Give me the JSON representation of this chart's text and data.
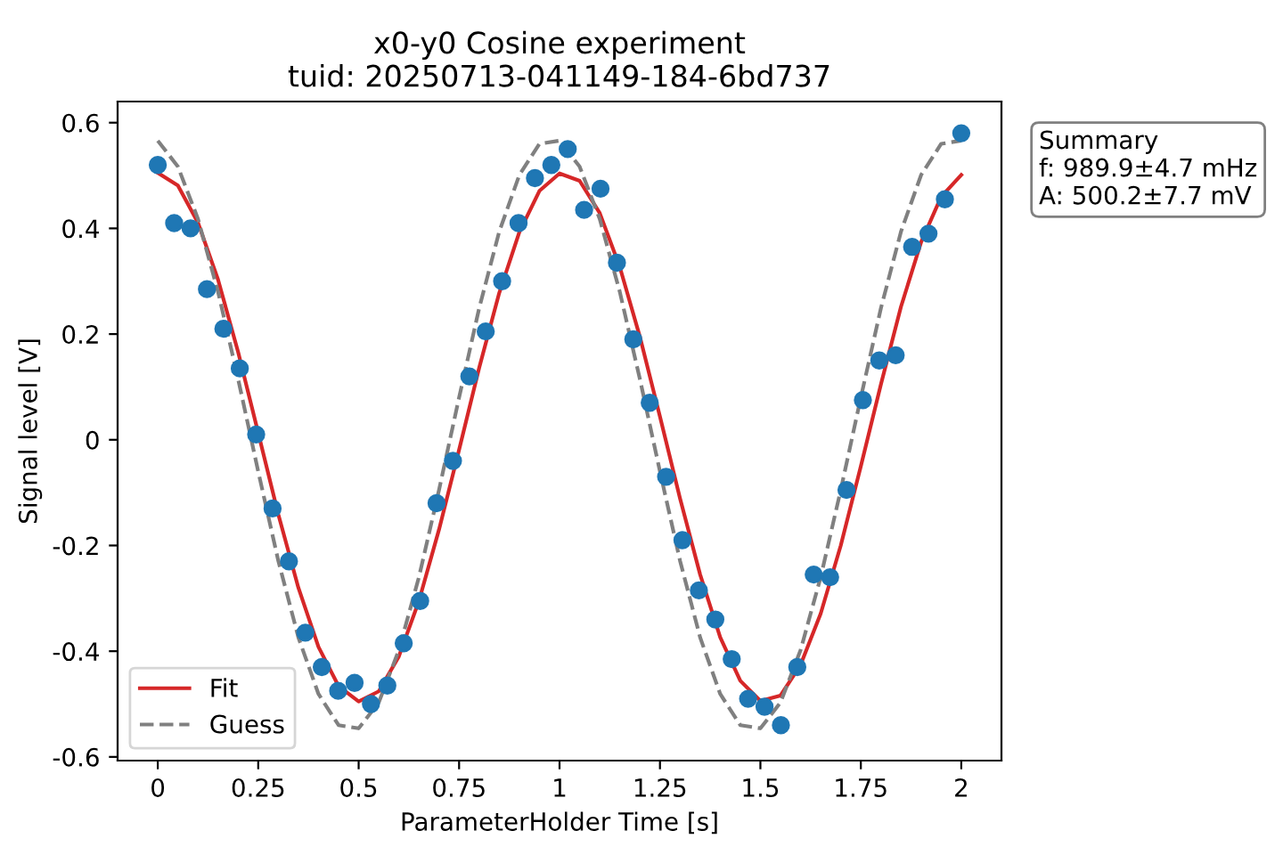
{
  "chart_data": {
    "type": "scatter",
    "title": "x0-y0 Cosine experiment",
    "subtitle": "tuid: 20250713-041149-184-6bd737",
    "xlabel": "ParameterHolder Time [s]",
    "ylabel": "Signal level [V]",
    "annotations": [
      "Summary\nf: 989.9±4.7 mHz\nA: 500.2±7.7 mV"
    ],
    "x": [
      0,
      0.0408,
      0.0816,
      0.1224,
      0.1633,
      0.2041,
      0.2449,
      0.2857,
      0.3265,
      0.3673,
      0.4082,
      0.449,
      0.4898,
      0.5306,
      0.5714,
      0.6122,
      0.6531,
      0.6939,
      0.7347,
      0.7755,
      0.8163,
      0.8571,
      0.898,
      0.9388,
      0.9796,
      1.0204,
      1.0612,
      1.102,
      1.1429,
      1.1837,
      1.2245,
      1.2653,
      1.3061,
      1.3469,
      1.3878,
      1.4286,
      1.4694,
      1.5102,
      1.551,
      1.5918,
      1.6327,
      1.6735,
      1.7143,
      1.7551,
      1.7959,
      1.8367,
      1.8776,
      1.9184,
      1.9592,
      2
    ],
    "series": [
      {
        "color": "#1f77b4",
        "marker": "circle",
        "values": [
          0.52,
          0.41,
          0.4,
          0.285,
          0.21,
          0.135,
          0.01,
          -0.13,
          -0.23,
          -0.365,
          -0.43,
          -0.475,
          -0.46,
          -0.5,
          -0.465,
          -0.385,
          -0.305,
          -0.12,
          -0.04,
          0.12,
          0.205,
          0.3,
          0.41,
          0.495,
          0.52,
          0.55,
          0.435,
          0.475,
          0.335,
          0.19,
          0.07,
          -0.07,
          -0.19,
          -0.285,
          -0.34,
          -0.415,
          -0.49,
          -0.505,
          -0.54,
          -0.43,
          -0.255,
          -0.26,
          -0.095,
          0.075,
          0.15,
          0.16,
          0.365,
          0.39,
          0.455,
          0.58
        ]
      },
      {
        "type": "line",
        "name": "Fit",
        "color": "#d62728",
        "line_style": "solid",
        "x": [
          0,
          0.05,
          0.1,
          0.15,
          0.2,
          0.25,
          0.3,
          0.35,
          0.4,
          0.45,
          0.5,
          0.55,
          0.6,
          0.65,
          0.7,
          0.75,
          0.8,
          0.85,
          0.9,
          0.95,
          1,
          1.05,
          1.1,
          1.15,
          1.2,
          1.25,
          1.3,
          1.35,
          1.4,
          1.45,
          1.5,
          1.55,
          1.6,
          1.65,
          1.7,
          1.75,
          1.8,
          1.85,
          1.9,
          1.95,
          2
        ],
        "values": [
          0.505,
          0.481,
          0.411,
          0.303,
          0.166,
          0.013,
          -0.141,
          -0.28,
          -0.392,
          -0.466,
          -0.495,
          -0.476,
          -0.41,
          -0.305,
          -0.17,
          -0.019,
          0.136,
          0.278,
          0.393,
          0.471,
          0.504,
          0.49,
          0.429,
          0.327,
          0.195,
          0.044,
          -0.111,
          -0.255,
          -0.374,
          -0.456,
          -0.494,
          -0.484,
          -0.426,
          -0.329,
          -0.2,
          -0.05,
          0.105,
          0.252,
          0.374,
          0.46,
          0.501
        ]
      },
      {
        "type": "line",
        "name": "Guess",
        "color": "#808080",
        "line_style": "dashed",
        "x": [
          0,
          0.05,
          0.1,
          0.15,
          0.2,
          0.25,
          0.3,
          0.35,
          0.4,
          0.45,
          0.5,
          0.55,
          0.6,
          0.65,
          0.7,
          0.75,
          0.8,
          0.85,
          0.9,
          0.95,
          1,
          1.05,
          1.1,
          1.15,
          1.2,
          1.25,
          1.3,
          1.35,
          1.4,
          1.45,
          1.5,
          1.55,
          1.6,
          1.65,
          1.7,
          1.75,
          1.8,
          1.85,
          1.9,
          1.95,
          2
        ],
        "values": [
          0.566,
          0.517,
          0.418,
          0.28,
          0.115,
          -0.06,
          -0.229,
          -0.374,
          -0.481,
          -0.54,
          -0.546,
          -0.497,
          -0.398,
          -0.26,
          -0.095,
          0.08,
          0.249,
          0.394,
          0.501,
          0.56,
          0.566,
          0.517,
          0.418,
          0.28,
          0.115,
          -0.06,
          -0.229,
          -0.374,
          -0.481,
          -0.54,
          -0.546,
          -0.497,
          -0.398,
          -0.26,
          -0.095,
          0.08,
          0.249,
          0.394,
          0.501,
          0.56,
          0.566
        ]
      }
    ],
    "xlim": [
      -0.1,
      2.1
    ],
    "xticks": [
      0,
      {
        "value": 0.25,
        "label": "0.25"
      },
      {
        "value": 0.5,
        "label": "0.5"
      },
      {
        "value": 0.75,
        "label": "0.75"
      },
      1,
      {
        "value": 1.25,
        "label": "1.25"
      },
      {
        "value": 1.5,
        "label": "1.5"
      },
      {
        "value": 1.75,
        "label": "1.75"
      },
      2
    ],
    "ylim": [
      -0.607,
      0.64
    ],
    "yticks": [
      {
        "value": -0.6,
        "label": "-0.6"
      },
      {
        "value": -0.4,
        "label": "-0.4"
      },
      {
        "value": -0.2,
        "label": "-0.2"
      },
      0,
      {
        "value": 0.2,
        "label": "0.2"
      },
      {
        "value": 0.4,
        "label": "0.4"
      },
      {
        "value": 0.6,
        "label": "0.6"
      }
    ],
    "grid": false,
    "legend": "bottom left"
  }
}
